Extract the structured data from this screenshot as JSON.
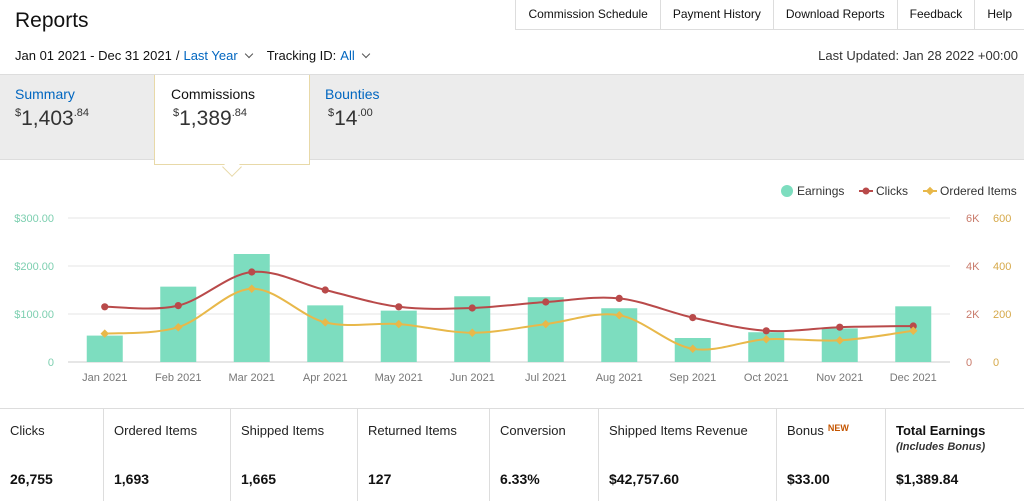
{
  "header": {
    "title": "Reports",
    "nav": [
      "Commission Schedule",
      "Payment History",
      "Download Reports",
      "Feedback",
      "Help"
    ],
    "date_range": "Jan 01 2021 - Dec 31 2021",
    "separator": "/",
    "period": "Last Year",
    "tracking_label": "Tracking ID:",
    "tracking_value": "All",
    "last_updated": "Last Updated: Jan 28 2022 +00:00"
  },
  "tabs": {
    "summary": {
      "label": "Summary",
      "currency": "$",
      "whole": "1,403",
      "cents": ".84"
    },
    "commissions": {
      "label": "Commissions",
      "currency": "$",
      "whole": "1,389",
      "cents": ".84"
    },
    "bounties": {
      "label": "Bounties",
      "currency": "$",
      "whole": "14",
      "cents": ".00"
    }
  },
  "chart_data": {
    "type": "bar",
    "categories": [
      "Jan 2021",
      "Feb 2021",
      "Mar 2021",
      "Apr 2021",
      "May 2021",
      "Jun 2021",
      "Jul 2021",
      "Aug 2021",
      "Sep 2021",
      "Oct 2021",
      "Nov 2021",
      "Dec 2021"
    ],
    "series": [
      {
        "name": "Earnings",
        "type": "bar",
        "axis": "left",
        "color": "#7dddbf",
        "values": [
          55,
          157,
          225,
          118,
          107,
          137,
          135,
          112,
          50,
          62,
          70,
          116
        ]
      },
      {
        "name": "Clicks",
        "type": "line",
        "axis": "right1",
        "color": "#b94a4a",
        "values": [
          2300,
          2350,
          3750,
          3000,
          2300,
          2250,
          2500,
          2650,
          1850,
          1300,
          1450,
          1500
        ]
      },
      {
        "name": "Ordered Items",
        "type": "line",
        "axis": "right2",
        "color": "#e8b84a",
        "values": [
          118,
          145,
          305,
          165,
          158,
          122,
          158,
          195,
          55,
          95,
          90,
          130
        ]
      }
    ],
    "left_axis": {
      "ticks": [
        "$300.00",
        "$200.00",
        "$100.00",
        "0"
      ],
      "ylim": [
        0,
        300
      ]
    },
    "right1_axis": {
      "ticks": [
        "6K",
        "4K",
        "2K",
        "0"
      ],
      "ylim": [
        0,
        6000
      ]
    },
    "right2_axis": {
      "ticks": [
        "600",
        "400",
        "200",
        "0"
      ],
      "ylim": [
        0,
        600
      ]
    },
    "legend_position": "top-right",
    "grid": true
  },
  "stats": [
    {
      "label": "Clicks",
      "value": "26,755"
    },
    {
      "label": "Ordered Items",
      "value": "1,693"
    },
    {
      "label": "Shipped Items",
      "value": "1,665"
    },
    {
      "label": "Returned Items",
      "value": "127"
    },
    {
      "label": "Conversion",
      "value": "6.33%"
    },
    {
      "label": "Shipped Items Revenue",
      "value": "$42,757.60"
    },
    {
      "label": "Bonus",
      "badge": "NEW",
      "value": "$33.00"
    },
    {
      "label": "Total Earnings",
      "sublabel": "(Includes Bonus)",
      "value": "$1,389.84"
    }
  ]
}
